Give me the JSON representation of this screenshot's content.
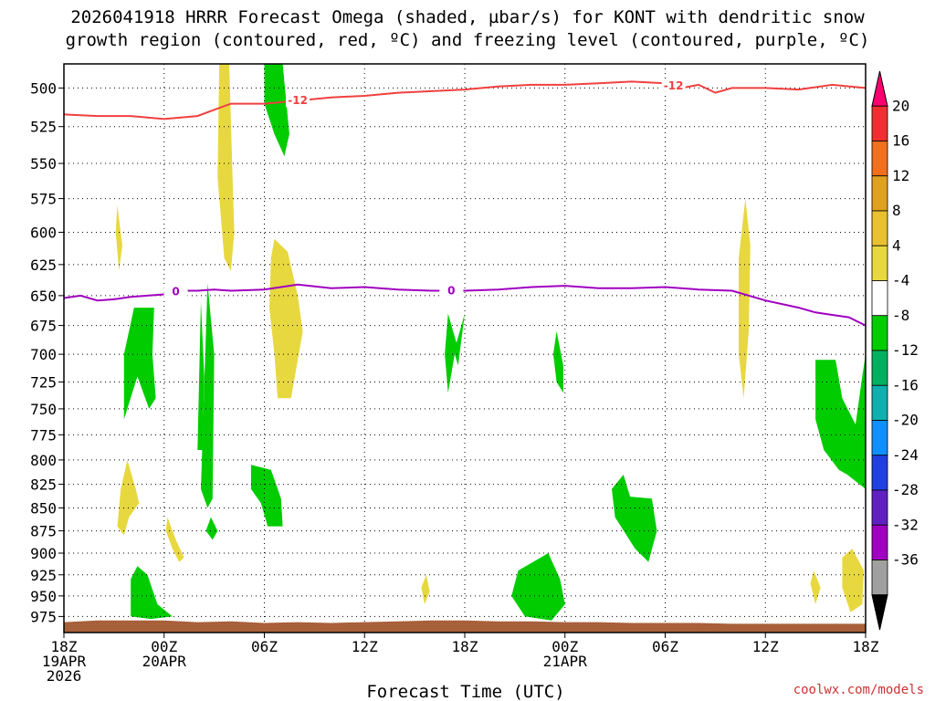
{
  "title": {
    "line1": "2026041918 HRRR Forecast Omega (shaded, µbar/s) for KONT with dendritic snow",
    "line2": "growth region (contoured, red, ºC) and freezing level (contoured, purple, ºC)"
  },
  "xlabel": "Forecast Time (UTC)",
  "credit": "coolwx.com/models",
  "chart_data": {
    "type": "contour",
    "y_axis": {
      "label": "",
      "ticks": [
        500,
        525,
        550,
        575,
        600,
        625,
        650,
        675,
        700,
        725,
        750,
        775,
        800,
        825,
        850,
        875,
        900,
        925,
        950,
        975
      ],
      "range": [
        485,
        995
      ],
      "inverted": true,
      "log": true
    },
    "x_axis": {
      "range_hours": [
        0,
        48
      ],
      "ticks": [
        {
          "h": 0,
          "l1": "18Z",
          "l2": "19APR",
          "l3": "2026"
        },
        {
          "h": 6,
          "l1": "00Z",
          "l2": "20APR",
          "l3": ""
        },
        {
          "h": 12,
          "l1": "06Z",
          "l2": "",
          "l3": ""
        },
        {
          "h": 18,
          "l1": "12Z",
          "l2": "",
          "l3": ""
        },
        {
          "h": 24,
          "l1": "18Z",
          "l2": "",
          "l3": ""
        },
        {
          "h": 30,
          "l1": "00Z",
          "l2": "21APR",
          "l3": ""
        },
        {
          "h": 36,
          "l1": "06Z",
          "l2": "",
          "l3": ""
        },
        {
          "h": 42,
          "l1": "12Z",
          "l2": "",
          "l3": ""
        },
        {
          "h": 48,
          "l1": "18Z",
          "l2": "",
          "l3": ""
        }
      ]
    },
    "grid": true,
    "colorbar": {
      "levels": [
        20,
        16,
        12,
        8,
        4,
        -4,
        -8,
        -12,
        -16,
        -20,
        -24,
        -28,
        -32,
        -36
      ],
      "colors": [
        "#ff0070",
        "#f03030",
        "#f07020",
        "#e0a020",
        "#e8c030",
        "#e8d840",
        "#ffffff",
        "#00cc00",
        "#00b060",
        "#10b0b0",
        "#1090ff",
        "#2040e0",
        "#6020c0",
        "#a000c0",
        "#a0a0a0",
        "#000000"
      ]
    },
    "series": [
      {
        "name": "-12",
        "color": "#f04040",
        "x": [
          0,
          2,
          4,
          6,
          8,
          9,
          10,
          12,
          14,
          16,
          18,
          20,
          22,
          24,
          26,
          28,
          30,
          32,
          34,
          36,
          37,
          38,
          39,
          40,
          42,
          44,
          46,
          48
        ],
        "y": [
          517,
          518,
          518,
          520,
          518,
          514,
          510,
          510,
          508,
          506,
          505,
          503,
          502,
          501,
          499,
          498,
          498,
          497,
          496,
          497,
          500,
          498,
          503,
          500,
          500,
          501,
          498,
          500
        ]
      },
      {
        "name": "0",
        "color": "#a000c0",
        "x": [
          0,
          1,
          2,
          3,
          4,
          5,
          6,
          7,
          8,
          9,
          10,
          12,
          14,
          16,
          18,
          20,
          22,
          24,
          26,
          28,
          30,
          32,
          34,
          36,
          38,
          40,
          42,
          44,
          45,
          46,
          47,
          48
        ],
        "y": [
          652,
          650,
          654,
          653,
          651,
          650,
          649,
          646,
          646,
          645,
          646,
          645,
          641,
          644,
          643,
          645,
          646,
          646,
          645,
          643,
          642,
          644,
          644,
          643,
          645,
          646,
          654,
          660,
          664,
          666,
          668,
          675
        ]
      }
    ],
    "shaded_regions": [
      {
        "value": 4,
        "color": "#e8d840",
        "points": [
          [
            9.3,
            485
          ],
          [
            9.9,
            485
          ],
          [
            10.1,
            560
          ],
          [
            10.2,
            600
          ],
          [
            10.0,
            630
          ],
          [
            9.6,
            620
          ],
          [
            9.2,
            560
          ]
        ]
      },
      {
        "value": 4,
        "color": "#e8d840",
        "points": [
          [
            3.2,
            580
          ],
          [
            3.5,
            610
          ],
          [
            3.3,
            630
          ],
          [
            3.1,
            600
          ]
        ]
      },
      {
        "value": 4,
        "color": "#e8d840",
        "points": [
          [
            12.6,
            605
          ],
          [
            13.4,
            615
          ],
          [
            14.0,
            650
          ],
          [
            14.3,
            680
          ],
          [
            13.6,
            740
          ],
          [
            12.8,
            740
          ],
          [
            12.6,
            700
          ],
          [
            12.3,
            660
          ],
          [
            12.4,
            620
          ]
        ]
      },
      {
        "value": 4,
        "color": "#e8d840",
        "points": [
          [
            40.8,
            575
          ],
          [
            41.1,
            610
          ],
          [
            41.0,
            680
          ],
          [
            40.7,
            740
          ],
          [
            40.4,
            700
          ],
          [
            40.4,
            620
          ]
        ]
      },
      {
        "value": 4,
        "color": "#e8d840",
        "points": [
          [
            3.8,
            800
          ],
          [
            4.3,
            830
          ],
          [
            4.5,
            845
          ],
          [
            3.9,
            860
          ],
          [
            3.6,
            880
          ],
          [
            3.2,
            870
          ],
          [
            3.4,
            830
          ]
        ]
      },
      {
        "value": 4,
        "color": "#e8d840",
        "points": [
          [
            6.2,
            860
          ],
          [
            6.7,
            885
          ],
          [
            7.2,
            905
          ],
          [
            6.9,
            910
          ],
          [
            6.5,
            895
          ],
          [
            6.1,
            875
          ]
        ]
      },
      {
        "value": 4,
        "color": "#e8d840",
        "points": [
          [
            21.7,
            925
          ],
          [
            21.9,
            945
          ],
          [
            21.6,
            960
          ],
          [
            21.4,
            940
          ]
        ]
      },
      {
        "value": 4,
        "color": "#e8d840",
        "points": [
          [
            46.6,
            905
          ],
          [
            47.2,
            895
          ],
          [
            47.9,
            920
          ],
          [
            47.8,
            960
          ],
          [
            47.1,
            970
          ],
          [
            46.6,
            940
          ]
        ]
      },
      {
        "value": 4,
        "color": "#e8d840",
        "points": [
          [
            44.9,
            920
          ],
          [
            45.3,
            940
          ],
          [
            45.0,
            960
          ],
          [
            44.7,
            935
          ]
        ]
      },
      {
        "value": -4,
        "color": "#00cc00",
        "points": [
          [
            12.0,
            485
          ],
          [
            13.1,
            485
          ],
          [
            13.5,
            530
          ],
          [
            13.2,
            545
          ],
          [
            12.6,
            530
          ],
          [
            12.0,
            510
          ]
        ]
      },
      {
        "value": -4,
        "color": "#00cc00",
        "points": [
          [
            8.6,
            640
          ],
          [
            9.0,
            700
          ],
          [
            8.9,
            840
          ],
          [
            8.6,
            850
          ],
          [
            8.2,
            830
          ]
        ]
      },
      {
        "value": -4,
        "color": "#00cc00",
        "points": [
          [
            8.2,
            655
          ],
          [
            8.4,
            720
          ],
          [
            8.3,
            790
          ],
          [
            8.0,
            790
          ]
        ]
      },
      {
        "value": -4,
        "color": "#00cc00",
        "points": [
          [
            4.2,
            660
          ],
          [
            5.4,
            660
          ],
          [
            5.3,
            700
          ],
          [
            5.5,
            740
          ],
          [
            5.1,
            750
          ],
          [
            4.4,
            720
          ],
          [
            3.6,
            760
          ],
          [
            3.6,
            700
          ]
        ]
      },
      {
        "value": -4,
        "color": "#00cc00",
        "points": [
          [
            8.8,
            860
          ],
          [
            9.2,
            875
          ],
          [
            8.9,
            885
          ],
          [
            8.5,
            875
          ]
        ]
      },
      {
        "value": -4,
        "color": "#00cc00",
        "points": [
          [
            11.2,
            805
          ],
          [
            12.4,
            810
          ],
          [
            13.0,
            840
          ],
          [
            13.1,
            870
          ],
          [
            12.2,
            870
          ],
          [
            11.8,
            845
          ],
          [
            11.2,
            830
          ]
        ]
      },
      {
        "value": -4,
        "color": "#00cc00",
        "points": [
          [
            24.0,
            665
          ],
          [
            23.6,
            710
          ],
          [
            24.0,
            730
          ],
          [
            23.4,
            700
          ],
          [
            23.0,
            735
          ],
          [
            22.8,
            700
          ],
          [
            23.0,
            665
          ],
          [
            23.5,
            690
          ]
        ]
      },
      {
        "value": -4,
        "color": "#00cc00",
        "points": [
          [
            29.5,
            680
          ],
          [
            29.9,
            710
          ],
          [
            29.9,
            735
          ],
          [
            29.5,
            725
          ],
          [
            29.3,
            700
          ]
        ]
      },
      {
        "value": -4,
        "color": "#00cc00",
        "points": [
          [
            33.5,
            815
          ],
          [
            33.9,
            838
          ],
          [
            35.2,
            840
          ],
          [
            35.5,
            875
          ],
          [
            35.0,
            910
          ],
          [
            34.2,
            895
          ],
          [
            33.0,
            860
          ],
          [
            32.8,
            830
          ]
        ]
      },
      {
        "value": -4,
        "color": "#00cc00",
        "points": [
          [
            27.2,
            920
          ],
          [
            29.0,
            900
          ],
          [
            29.7,
            930
          ],
          [
            30.0,
            960
          ],
          [
            29.2,
            980
          ],
          [
            27.6,
            975
          ],
          [
            26.8,
            950
          ]
        ]
      },
      {
        "value": -4,
        "color": "#00cc00",
        "points": [
          [
            4.4,
            915
          ],
          [
            5.0,
            925
          ],
          [
            5.6,
            960
          ],
          [
            6.5,
            975
          ],
          [
            5.2,
            978
          ],
          [
            4.0,
            975
          ],
          [
            4.0,
            930
          ]
        ]
      },
      {
        "value": -4,
        "color": "#00cc00",
        "points": [
          [
            45.0,
            705
          ],
          [
            46.2,
            705
          ],
          [
            46.6,
            740
          ],
          [
            47.4,
            765
          ],
          [
            47.8,
            720
          ],
          [
            48.0,
            700
          ],
          [
            48.0,
            830
          ],
          [
            46.9,
            815
          ],
          [
            46.4,
            810
          ],
          [
            45.5,
            790
          ],
          [
            45.0,
            760
          ]
        ]
      }
    ],
    "terrain": {
      "color": "#a8603a",
      "surface_hpa": [
        982,
        980,
        980,
        980,
        982,
        981,
        983,
        982,
        983,
        982,
        981,
        980,
        980,
        981,
        981,
        982,
        982,
        983,
        983,
        983,
        984,
        984,
        984,
        984,
        984
      ]
    }
  }
}
